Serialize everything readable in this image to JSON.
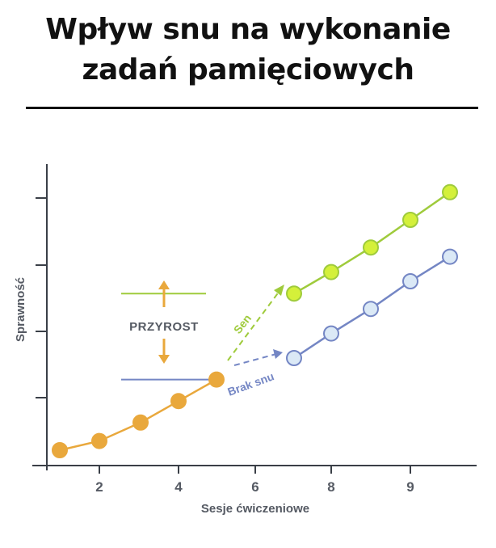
{
  "header": {
    "title_line1": "Wpływ snu na wykonanie",
    "title_line2": "zadań pamięciowych"
  },
  "chart_data": {
    "type": "line",
    "xlabel": "Sesje ćwiczeniowe",
    "ylabel": "Sprawność",
    "x_ticks": [
      2,
      4,
      6,
      8,
      9
    ],
    "xlim": [
      0.7,
      10.3
    ],
    "ylim": [
      0,
      100
    ],
    "grid": false,
    "series": [
      {
        "name": "",
        "color": "#e9a83c",
        "marker_fill": "#e9a83c",
        "x": [
          1,
          2,
          3,
          4,
          5
        ],
        "y": [
          5,
          8,
          14,
          21,
          28
        ]
      },
      {
        "name": "Sen",
        "color": "#9fcb3c",
        "marker_fill": "#d4f03a",
        "x": [
          7,
          8,
          9,
          10,
          11
        ],
        "y": [
          56,
          63,
          71,
          80,
          89
        ]
      },
      {
        "name": "Brak snu",
        "color": "#7486c4",
        "marker_fill": "#dbe9f6",
        "x": [
          7,
          8,
          9,
          10,
          11
        ],
        "y": [
          35,
          43,
          51,
          60,
          68
        ]
      }
    ],
    "annotations": {
      "gain_label": "PRZYROST",
      "sleep_label": "Sen",
      "no_sleep_label": "Brak snu",
      "gain_top_value": 56,
      "gain_bottom_value": 28
    }
  },
  "colors": {
    "title": "#111111",
    "axis": "#3a3f47",
    "text": "#555a63",
    "arrow": "#e9a83c"
  }
}
